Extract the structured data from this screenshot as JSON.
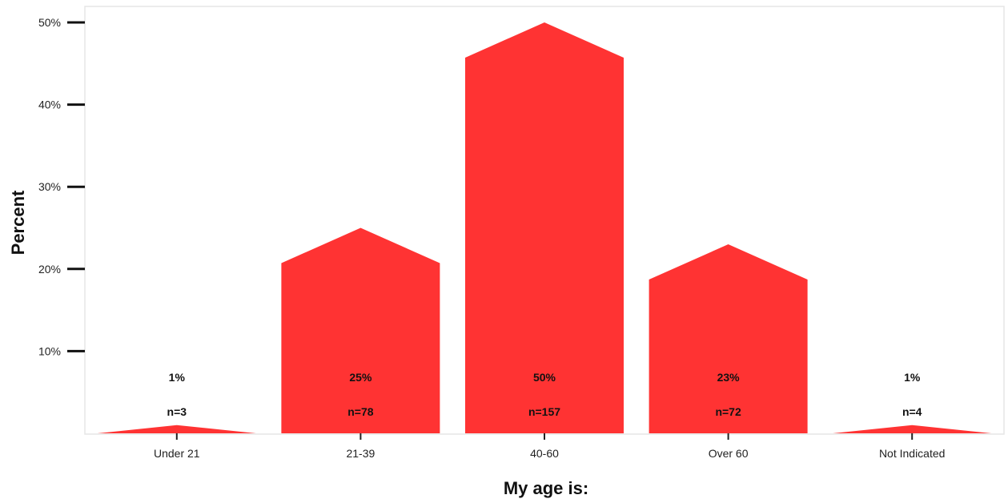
{
  "chart_data": {
    "type": "bar",
    "categories": [
      "Under 21",
      "21-39",
      "40-60",
      "Over 60",
      "Not Indicated"
    ],
    "values": [
      1,
      25,
      50,
      23,
      1
    ],
    "counts": [
      "n=3",
      "n=78",
      "n=157",
      "n=72",
      "n=4"
    ],
    "value_labels": [
      "1%",
      "25%",
      "50%",
      "23%",
      "1%"
    ],
    "xlabel": "My age is:",
    "ylabel": "Percent",
    "ylim": [
      0,
      50
    ],
    "yticks": [
      10,
      20,
      30,
      40,
      50
    ],
    "ytick_labels": [
      "10%",
      "20%",
      "30%",
      "40%",
      "50%"
    ],
    "grid": false,
    "bar_color": "#ff3333"
  }
}
